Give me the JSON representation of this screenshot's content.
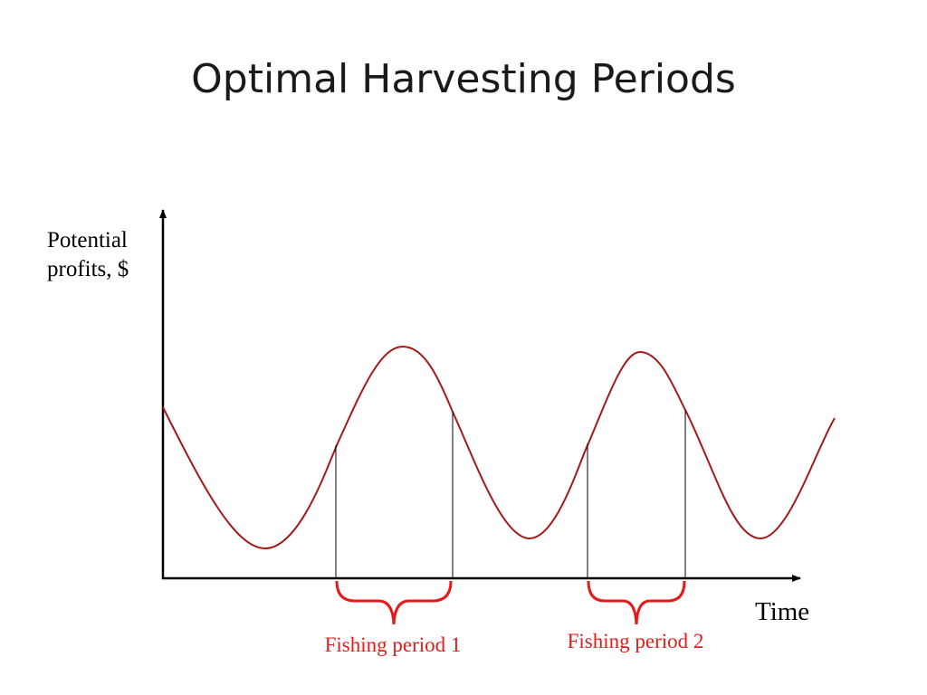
{
  "slide": {
    "title": "Optimal Harvesting Periods"
  },
  "diagram": {
    "y_axis_label_line1": "Potential",
    "y_axis_label_line2": "profits, $",
    "x_axis_label": "Time",
    "periods": [
      {
        "label": "Fishing period 1"
      },
      {
        "label": "Fishing period 2"
      }
    ],
    "colors": {
      "curve": "#a31a1a",
      "brace": "#e31b1b",
      "period_label": "#e31b1b",
      "axis": "#000000"
    }
  }
}
